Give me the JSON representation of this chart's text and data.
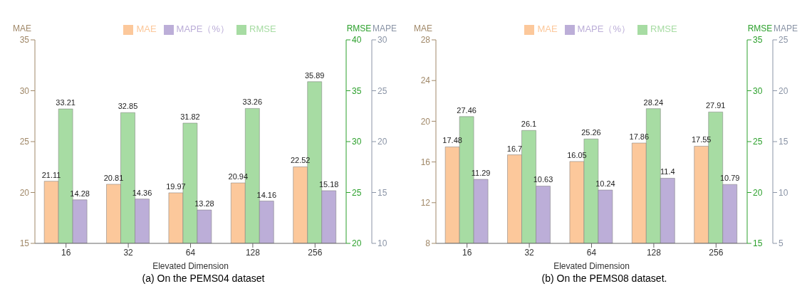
{
  "chart_data": [
    {
      "type": "bar",
      "xlabel": "Elevated Dimension",
      "ylabel": "MAE",
      "y2label": "RMSE",
      "y3label": "MAPE",
      "categories": [
        "16",
        "32",
        "64",
        "128",
        "256"
      ],
      "series": [
        {
          "name": "MAE",
          "color": "#fcc89b",
          "values": [
            21.11,
            20.81,
            19.97,
            20.94,
            22.52
          ]
        },
        {
          "name": "RMSE",
          "color": "#a7dca3",
          "axis": "y2",
          "values": [
            33.21,
            32.85,
            31.82,
            33.26,
            35.89
          ]
        },
        {
          "name": "MAPE（%）",
          "color": "#bcaed8",
          "axis": "y3",
          "values": [
            14.28,
            14.36,
            13.28,
            14.16,
            15.18
          ]
        }
      ],
      "ylim": [
        15,
        35
      ],
      "yticks": [
        15,
        20,
        25,
        30,
        35
      ],
      "y2lim": [
        20,
        40
      ],
      "y2ticks": [
        20,
        25,
        30,
        35,
        40
      ],
      "y3lim": [
        10,
        30
      ],
      "y3ticks": [
        10,
        15,
        20,
        25,
        30
      ],
      "data_labels": true,
      "grid": false,
      "legend": "top",
      "annotations": [
        "(a) On the PEMS04 dataset"
      ]
    },
    {
      "type": "bar",
      "xlabel": "Elevated Dimension",
      "ylabel": "MAE",
      "y2label": "RMSE",
      "y3label": "MAPE",
      "categories": [
        "16",
        "32",
        "64",
        "128",
        "256"
      ],
      "series": [
        {
          "name": "MAE",
          "color": "#fcc89b",
          "values": [
            17.48,
            16.7,
            16.05,
            17.86,
            17.55
          ]
        },
        {
          "name": "RMSE",
          "color": "#a7dca3",
          "axis": "y2",
          "values": [
            27.46,
            26.1,
            25.26,
            28.24,
            27.91
          ]
        },
        {
          "name": "MAPE（%）",
          "color": "#bcaed8",
          "axis": "y3",
          "values": [
            11.29,
            10.63,
            10.24,
            11.4,
            10.79
          ]
        }
      ],
      "ylim": [
        8,
        28
      ],
      "yticks": [
        8,
        12,
        16,
        20,
        24,
        28
      ],
      "y2lim": [
        15,
        35
      ],
      "y2ticks": [
        15,
        20,
        25,
        30,
        35
      ],
      "y3lim": [
        5,
        25
      ],
      "y3ticks": [
        5,
        10,
        15,
        20,
        25
      ],
      "data_labels": true,
      "grid": false,
      "legend": "top",
      "annotations": [
        "(b) On the PEMS08 dataset."
      ]
    }
  ]
}
